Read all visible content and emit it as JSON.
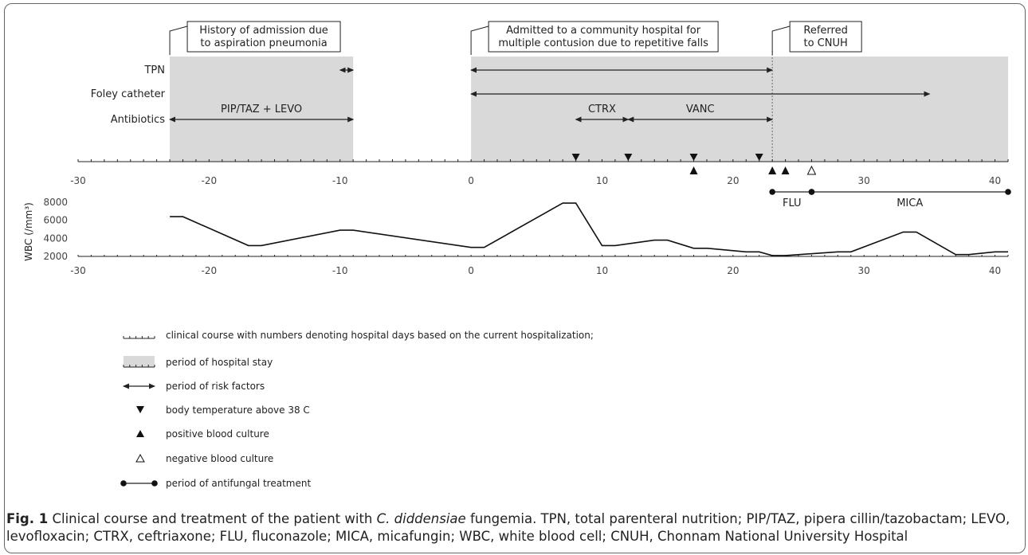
{
  "chart_data": {
    "type": "timeline",
    "x_axis": {
      "range": [
        -30,
        41
      ],
      "ticks": [
        -30,
        -20,
        -10,
        0,
        10,
        20,
        30,
        40
      ]
    },
    "hospital_stays": [
      {
        "start": -23,
        "end": -9
      },
      {
        "start": 0,
        "end": 41
      }
    ],
    "callouts": [
      {
        "lines": [
          "History of admission due",
          "to aspiration pneumonia"
        ],
        "at": -23
      },
      {
        "lines": [
          "Admitted to a community hospital for",
          "multiple contusion due to repetitive falls"
        ],
        "at": 0
      },
      {
        "lines": [
          "Referred",
          "to CNUH"
        ],
        "at": 23
      }
    ],
    "referral_day": 23,
    "risk_factor_rows": [
      {
        "label": "TPN",
        "periods": [
          {
            "start": -10,
            "end": -9,
            "label": ""
          },
          {
            "start": 0,
            "end": 23,
            "label": ""
          }
        ]
      },
      {
        "label": "Foley catheter",
        "periods": [
          {
            "start": 0,
            "end": 35,
            "label": ""
          }
        ]
      },
      {
        "label": "Antibiotics",
        "periods": [
          {
            "start": -23,
            "end": -9,
            "label": "PIP/TAZ + LEVO"
          },
          {
            "start": 8,
            "end": 12,
            "label": "CTRX"
          },
          {
            "start": 12,
            "end": 23,
            "label": "VANC"
          }
        ]
      }
    ],
    "fever_days": [
      8,
      12,
      17,
      22
    ],
    "positive_culture_days": [
      17,
      23,
      24
    ],
    "negative_culture_days": [
      26
    ],
    "antifungal": [
      {
        "label": "FLU",
        "start": 23,
        "end": 26
      },
      {
        "label": "MICA",
        "start": 26,
        "end": 41
      }
    ],
    "wbc": {
      "ylabel": "WBC (/mm³)",
      "y_ticks": [
        2000,
        4000,
        6000,
        8000
      ],
      "ylim": [
        2000,
        8000
      ],
      "x": [
        -23,
        -22,
        -17,
        -16,
        -10,
        -9,
        0,
        1,
        7,
        8,
        10,
        11,
        14,
        15,
        17,
        18,
        21,
        22,
        23,
        24,
        28,
        29,
        33,
        34,
        37,
        38,
        40,
        41
      ],
      "y": [
        6400,
        6400,
        3200,
        3200,
        4900,
        4900,
        3000,
        3000,
        7900,
        7900,
        3200,
        3200,
        3800,
        3800,
        2900,
        2900,
        2500,
        2500,
        2100,
        2100,
        2500,
        2500,
        4700,
        4700,
        2200,
        2200,
        2500,
        2500
      ]
    }
  },
  "legend": [
    {
      "symbol": "ticks",
      "text": "clinical course with numbers denoting hospital days based on the current hospitalization;"
    },
    {
      "symbol": "stay",
      "text": "period of hospital stay"
    },
    {
      "symbol": "arrow",
      "text": "period of risk factors"
    },
    {
      "symbol": "fever",
      "text": "body temperature above 38 C"
    },
    {
      "symbol": "positive",
      "text": "positive blood culture"
    },
    {
      "symbol": "negative",
      "text": "negative blood culture"
    },
    {
      "symbol": "antifungal",
      "text": "period of antifungal treatment"
    }
  ],
  "caption": {
    "label": "Fig. 1",
    "part1": " Clinical course and treatment of the patient with ",
    "organism": "C. diddensiae",
    "part2": " fungemia. TPN, total parenteral nutrition; PIP/TAZ, pipera cillin/tazobactam; LEVO, levofloxacin; CTRX, ceftriaxone; FLU, fluconazole; MICA, micafungin; WBC, white blood cell; CNUH, Chonnam National University Hospital"
  }
}
